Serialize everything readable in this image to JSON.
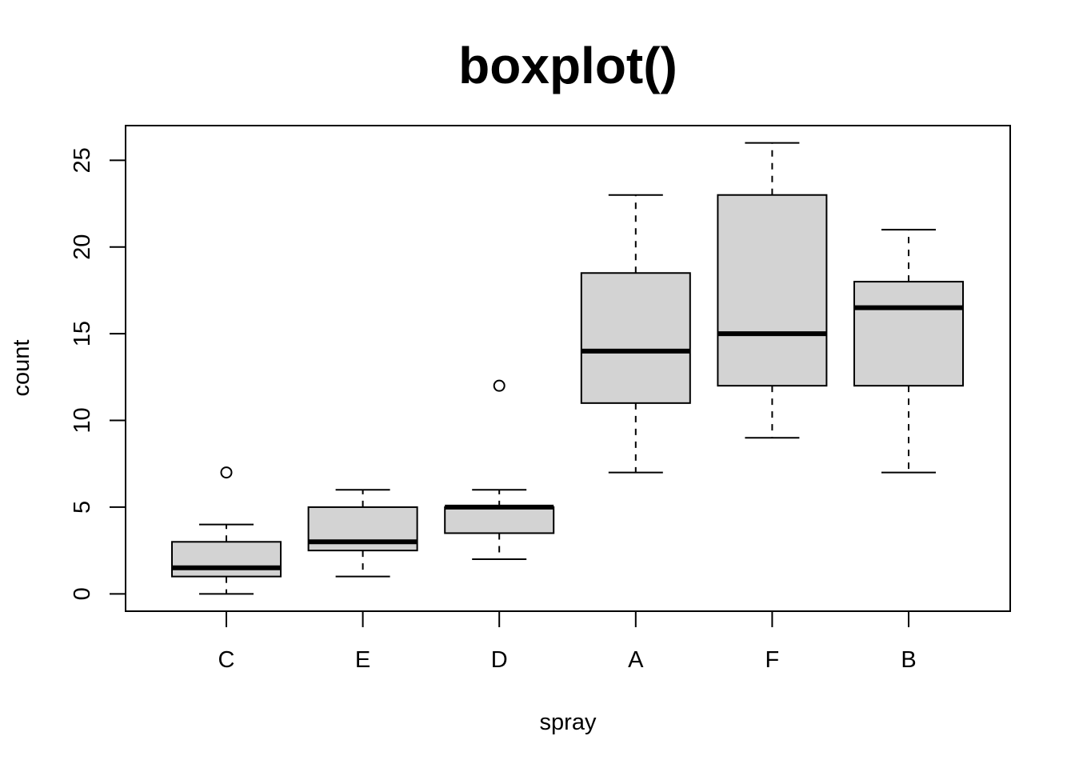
{
  "chart_data": {
    "type": "boxplot",
    "title": "boxplot()",
    "xlabel": "spray",
    "ylabel": "count",
    "categories": [
      "C",
      "E",
      "D",
      "A",
      "F",
      "B"
    ],
    "ylim": [
      -1,
      27
    ],
    "yticks": [
      0,
      5,
      10,
      15,
      20,
      25
    ],
    "ytick_labels": [
      "0",
      "5",
      "10",
      "15",
      "20",
      "25"
    ],
    "boxes": [
      {
        "category": "C",
        "whisker_low": 0,
        "q1": 1,
        "median": 1.5,
        "q3": 3,
        "whisker_high": 4,
        "outliers": [
          7
        ]
      },
      {
        "category": "E",
        "whisker_low": 1,
        "q1": 2.5,
        "median": 3,
        "q3": 5,
        "whisker_high": 6,
        "outliers": []
      },
      {
        "category": "D",
        "whisker_low": 2,
        "q1": 3.5,
        "median": 5,
        "q3": 5,
        "whisker_high": 6,
        "outliers": [
          12
        ]
      },
      {
        "category": "A",
        "whisker_low": 7,
        "q1": 11,
        "median": 14,
        "q3": 18.5,
        "whisker_high": 23,
        "outliers": []
      },
      {
        "category": "F",
        "whisker_low": 9,
        "q1": 12,
        "median": 15,
        "q3": 23,
        "whisker_high": 26,
        "outliers": []
      },
      {
        "category": "B",
        "whisker_low": 7,
        "q1": 12,
        "median": 16.5,
        "q3": 18,
        "whisker_high": 21,
        "outliers": []
      }
    ],
    "box_fill": "#d3d3d3",
    "line_color": "#000000",
    "grid": false,
    "legend": "none"
  }
}
